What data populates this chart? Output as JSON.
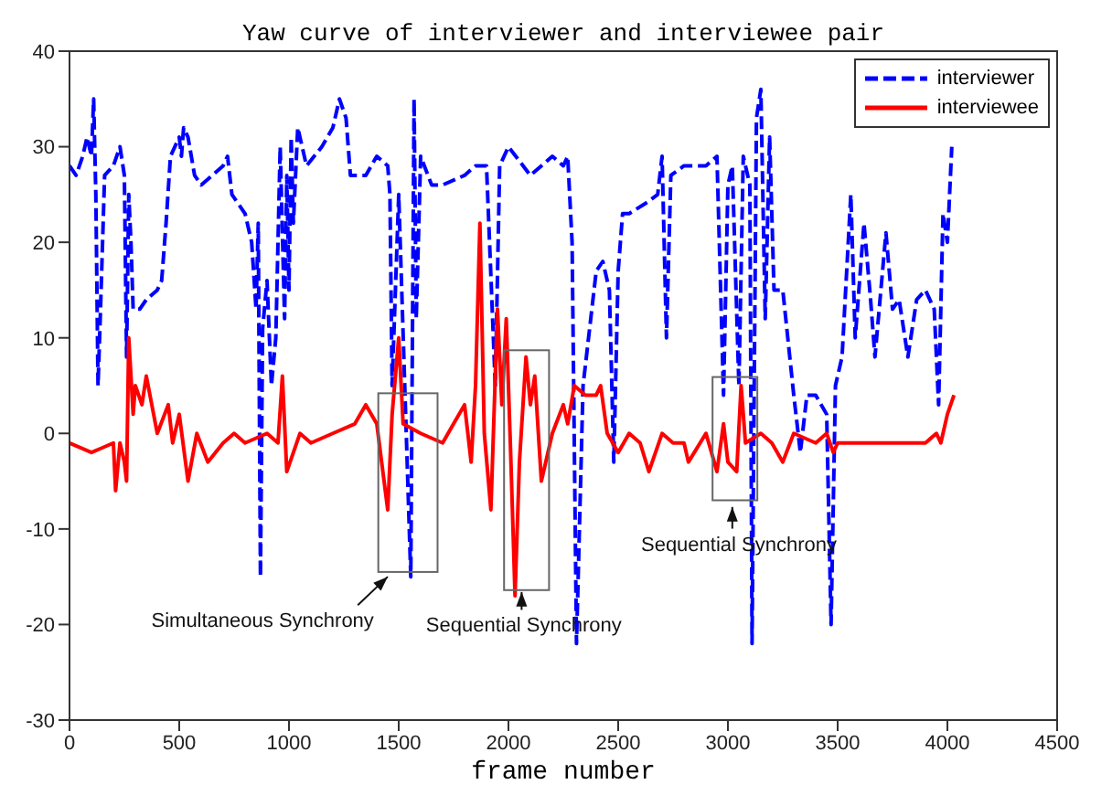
{
  "chart_data": {
    "type": "line",
    "title": "Yaw curve of interviewer and interviewee pair",
    "xlabel": "frame number",
    "xlim": [
      0,
      4500
    ],
    "xticks": [
      0,
      500,
      1000,
      1500,
      2000,
      2500,
      3000,
      3500,
      4000,
      4500
    ],
    "ylim": [
      -30,
      40
    ],
    "yticks": [
      -30,
      -20,
      -10,
      0,
      10,
      20,
      30,
      40
    ],
    "grid": false,
    "legend": "top right",
    "marker": "none",
    "annotations": [
      "Simultaneous Synchrony",
      "Sequential Synchrony",
      "Sequential Synchrony"
    ],
    "series": [
      {
        "name": "interviewer",
        "color": "#0000ff",
        "line_style": "dashed",
        "x": [
          0,
          30,
          60,
          80,
          100,
          110,
          120,
          130,
          140,
          160,
          200,
          230,
          250,
          260,
          270,
          280,
          290,
          320,
          350,
          400,
          420,
          440,
          460,
          480,
          500,
          510,
          520,
          540,
          570,
          600,
          650,
          700,
          720,
          740,
          800,
          830,
          850,
          860,
          870,
          880,
          900,
          920,
          940,
          960,
          980,
          990,
          1000,
          1010,
          1020,
          1030,
          1040,
          1080,
          1150,
          1200,
          1230,
          1260,
          1280,
          1350,
          1400,
          1450,
          1460,
          1470,
          1500,
          1555,
          1570,
          1580,
          1600,
          1650,
          1700,
          1800,
          1850,
          1900,
          1940,
          1960,
          2000,
          2100,
          2200,
          2250,
          2270,
          2290,
          2310,
          2340,
          2380,
          2400,
          2430,
          2460,
          2480,
          2500,
          2520,
          2550,
          2620,
          2680,
          2700,
          2720,
          2740,
          2800,
          2900,
          2950,
          2980,
          3000,
          3020,
          3050,
          3070,
          3100,
          3110,
          3130,
          3150,
          3170,
          3190,
          3210,
          3250,
          3300,
          3330,
          3360,
          3400,
          3450,
          3470,
          3490,
          3520,
          3560,
          3580,
          3620,
          3650,
          3670,
          3720,
          3750,
          3780,
          3820,
          3860,
          3900,
          3940,
          3960,
          3980,
          4000,
          4020
        ],
        "values": [
          28,
          27,
          29,
          31,
          29,
          35,
          25,
          5,
          12,
          27,
          28,
          30,
          27,
          8,
          25,
          20,
          13,
          13,
          14,
          15,
          16,
          22,
          29,
          30,
          31,
          29,
          32,
          31,
          27,
          26,
          27,
          28,
          29,
          25,
          23,
          20,
          13,
          22,
          -15,
          11,
          16,
          5,
          10,
          30,
          12,
          27,
          15,
          31,
          22,
          27,
          32,
          28,
          30,
          32,
          35,
          33,
          27,
          27,
          29,
          28,
          25,
          5,
          25,
          -15,
          35,
          12,
          29,
          26,
          26,
          27,
          28,
          28,
          5,
          28,
          30,
          27,
          29,
          28,
          29,
          20,
          -22,
          5,
          13,
          17,
          18,
          15,
          -3,
          17,
          23,
          23,
          24,
          25,
          29,
          10,
          27,
          28,
          28,
          29,
          4,
          26,
          28,
          5,
          29,
          26,
          -22,
          33,
          36,
          12,
          31,
          15,
          15,
          4,
          -2,
          4,
          4,
          2,
          -20,
          5,
          8,
          25,
          10,
          22,
          14,
          8,
          21,
          13,
          14,
          8,
          14,
          15,
          13,
          3,
          23,
          20,
          30
        ]
      },
      {
        "name": "interviewee",
        "color": "#ff0000",
        "line_style": "solid",
        "x": [
          0,
          100,
          150,
          200,
          210,
          230,
          250,
          260,
          270,
          290,
          300,
          330,
          350,
          400,
          450,
          470,
          500,
          540,
          580,
          630,
          700,
          750,
          800,
          900,
          950,
          970,
          990,
          1050,
          1100,
          1200,
          1300,
          1350,
          1400,
          1450,
          1470,
          1500,
          1520,
          1600,
          1700,
          1750,
          1800,
          1830,
          1850,
          1870,
          1890,
          1920,
          1950,
          1970,
          1990,
          2010,
          2030,
          2050,
          2080,
          2100,
          2120,
          2150,
          2200,
          2250,
          2270,
          2300,
          2350,
          2400,
          2420,
          2450,
          2500,
          2550,
          2600,
          2640,
          2700,
          2750,
          2800,
          2820,
          2900,
          2950,
          2980,
          3000,
          3040,
          3060,
          3080,
          3150,
          3200,
          3250,
          3300,
          3400,
          3450,
          3480,
          3500,
          3600,
          3700,
          3800,
          3900,
          3950,
          3970,
          4000,
          4030
        ],
        "values": [
          -1,
          -2,
          -1.5,
          -1,
          -6,
          -1,
          -3,
          -5,
          10,
          2,
          5,
          3,
          6,
          0,
          3,
          -1,
          2,
          -5,
          0,
          -3,
          -1,
          0,
          -1,
          0,
          -1,
          6,
          -4,
          0,
          -1,
          0,
          1,
          3,
          1,
          -8,
          2,
          10,
          1,
          0,
          -1,
          1,
          3,
          -3,
          5,
          22,
          0,
          -8,
          13,
          3,
          12,
          -2,
          -17,
          -3,
          8,
          3,
          6,
          -5,
          0,
          3,
          1,
          5,
          4,
          4,
          5,
          0,
          -2,
          0,
          -1,
          -4,
          0,
          -1,
          -1,
          -3,
          0,
          -4,
          1,
          -3,
          -4,
          5,
          -1,
          0,
          -1,
          -3,
          0,
          -1,
          0,
          -2,
          -1,
          -1,
          -1,
          -1,
          -1,
          0,
          -1,
          2,
          4
        ]
      }
    ]
  }
}
